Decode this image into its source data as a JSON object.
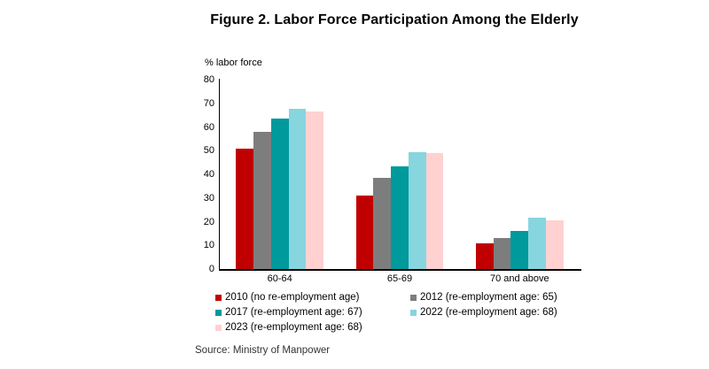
{
  "title": "Figure 2. Labor Force Participation Among the Elderly",
  "source": "Source: Ministry of Manpower",
  "chart_data": {
    "type": "bar",
    "title": "Figure 2. Labor Force Participation Among the Elderly",
    "ylabel": "% labor force",
    "xlabel": "",
    "categories": [
      "60-64",
      "65-69",
      "70 and above"
    ],
    "series": [
      {
        "name": "2010 (no re-employment age)",
        "color": "#C00000",
        "values": [
          50.7,
          31.0,
          10.9
        ]
      },
      {
        "name": "2012 (re-employment age: 65)",
        "color": "#7D7D7D",
        "values": [
          57.8,
          38.6,
          13.0
        ]
      },
      {
        "name": "2017 (re-employment age: 67)",
        "color": "#00999C",
        "values": [
          63.4,
          43.5,
          15.9
        ]
      },
      {
        "name": "2022 (re-employment age: 68)",
        "color": "#87D5DE",
        "values": [
          67.5,
          49.4,
          21.7
        ]
      },
      {
        "name": "2023 (re-employment age: 68)",
        "color": "#FFD1D1",
        "values": [
          66.4,
          49.1,
          20.6
        ]
      }
    ],
    "ylim": [
      0,
      80
    ],
    "yticks": [
      0,
      10,
      20,
      30,
      40,
      50,
      60,
      70,
      80
    ],
    "grid": false,
    "legend_position": "bottom",
    "axis_color": "#000000"
  }
}
